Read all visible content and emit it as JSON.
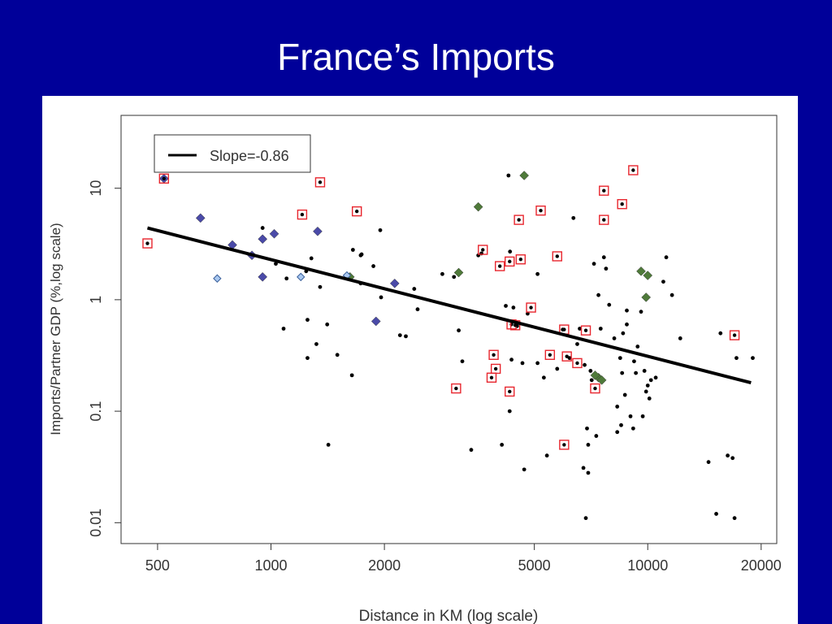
{
  "slide": {
    "title": "France’s Imports"
  },
  "colors": {
    "background": "#000099",
    "panel": "#ffffff",
    "regression_line": "#000000",
    "black_points": "#000000",
    "green_points": "#4f7a3a",
    "purple_points": "#4a4aa8",
    "light_blue_points": "#a9c8f0",
    "box_highlight": "#e8262e"
  },
  "chart_data": {
    "type": "scatter",
    "title": "",
    "xlabel": "Distance in KM (log scale)",
    "ylabel": "Imports/Partner GDP (%,log scale)",
    "xscale": "log",
    "yscale": "log",
    "xlim": [
      400,
      22000
    ],
    "ylim": [
      0.0065,
      45
    ],
    "x_ticks": [
      500,
      1000,
      2000,
      5000,
      10000,
      20000
    ],
    "x_tick_labels": [
      "500",
      "1000",
      "2000",
      "5000",
      "10000",
      "20000"
    ],
    "y_ticks": [
      0.01,
      0.1,
      1,
      10
    ],
    "y_tick_labels": [
      "0.01",
      "0.1",
      "1",
      "10"
    ],
    "grid": false,
    "legend": {
      "position": "top-left",
      "entries": [
        {
          "label": "Slope=-0.86"
        }
      ]
    },
    "regression": {
      "slope": -0.86,
      "x": [
        470,
        18800
      ],
      "y": [
        4.4,
        0.18
      ]
    },
    "series": [
      {
        "name": "",
        "marker": "dot",
        "color": "#000000",
        "x": [
          950,
          1030,
          1280,
          1250,
          1080,
          1240,
          1410,
          1350,
          1640,
          1740,
          1870,
          1950,
          1730,
          1960,
          2400,
          2280,
          2450,
          2850,
          3150,
          3220,
          3060,
          3550,
          4200,
          4300,
          4700,
          4400,
          4800,
          5100,
          5300,
          5100,
          5400,
          5750,
          4650,
          5950,
          6200,
          6350,
          6500,
          6600,
          6800,
          6950,
          7050,
          7200,
          7400,
          7500,
          7650,
          7750,
          7900,
          8150,
          8300,
          8450,
          8550,
          8700,
          8800,
          9000,
          9150,
          9300,
          9400,
          9600,
          9800,
          10000,
          10200,
          10500,
          11000,
          11200,
          11600,
          12200,
          14500,
          15200,
          16300,
          17000,
          19000,
          9900,
          10100,
          9700,
          6850,
          6750,
          6950,
          7100,
          7300,
          8600,
          8800,
          9200,
          3400,
          4100,
          4350,
          4500,
          2200,
          1420,
          1650,
          1500,
          1100,
          1730,
          1250,
          1320,
          6900,
          15600,
          16800,
          17200,
          4270,
          4310,
          3620,
          8500,
          8300
        ],
        "y": [
          4.4,
          2.1,
          2.35,
          0.66,
          0.55,
          1.8,
          0.6,
          1.3,
          0.21,
          2.55,
          2.0,
          4.2,
          2.5,
          1.05,
          1.25,
          0.47,
          0.82,
          1.7,
          0.53,
          0.28,
          1.6,
          2.5,
          0.88,
          0.1,
          0.03,
          0.85,
          0.75,
          0.27,
          0.2,
          1.7,
          0.04,
          0.24,
          0.27,
          0.54,
          0.3,
          5.4,
          0.4,
          0.55,
          0.26,
          0.05,
          0.23,
          2.1,
          1.1,
          0.55,
          2.4,
          1.9,
          0.9,
          0.45,
          0.11,
          0.3,
          0.22,
          0.14,
          0.8,
          0.09,
          0.07,
          0.22,
          0.38,
          0.78,
          0.23,
          0.17,
          0.19,
          0.2,
          1.45,
          2.4,
          1.1,
          0.45,
          0.035,
          0.012,
          0.04,
          0.011,
          0.3,
          0.15,
          0.13,
          0.09,
          0.011,
          0.031,
          0.028,
          0.19,
          0.06,
          0.5,
          0.6,
          0.28,
          0.045,
          0.05,
          0.29,
          0.58,
          0.48,
          0.05,
          2.8,
          0.32,
          1.55,
          1.4,
          0.3,
          0.4,
          0.07,
          0.5,
          0.038,
          0.3,
          13.0,
          2.7,
          2.6,
          0.075,
          0.065
        ]
      },
      {
        "name": "",
        "marker": "filled-diamond",
        "color": "#4f7a3a",
        "x": [
          4700,
          3550,
          3150,
          9600,
          10000,
          9900,
          7400,
          7250,
          7550,
          1620
        ],
        "y": [
          13.0,
          6.8,
          1.75,
          1.8,
          1.65,
          1.05,
          0.2,
          0.21,
          0.19,
          1.6
        ]
      },
      {
        "name": "",
        "marker": "filled-diamond",
        "color": "#4a4aa8",
        "x": [
          520,
          650,
          790,
          890,
          950,
          1020,
          950,
          1330,
          2130,
          1900
        ],
        "y": [
          12.2,
          5.4,
          3.1,
          2.5,
          3.5,
          3.9,
          1.6,
          4.1,
          1.4,
          0.64
        ]
      },
      {
        "name": "",
        "marker": "open-diamond",
        "color": "#a9c8f0",
        "x": [
          720,
          1200,
          1590
        ],
        "y": [
          1.55,
          1.6,
          1.65
        ]
      },
      {
        "name": "",
        "marker": "boxed-point",
        "color": "#e8262e",
        "x": [
          470,
          520,
          1210,
          1350,
          1690,
          3100,
          3650,
          3900,
          4050,
          4300,
          4550,
          4350,
          4600,
          4900,
          5200,
          5500,
          5750,
          6000,
          6100,
          6500,
          6850,
          7250,
          7650,
          7650,
          8550,
          9150,
          3950,
          3850,
          4300,
          4450,
          17000,
          6000
        ],
        "y": [
          3.2,
          12.2,
          5.8,
          11.3,
          6.2,
          0.16,
          2.8,
          0.32,
          2.0,
          2.2,
          5.2,
          0.6,
          2.3,
          0.85,
          6.3,
          0.32,
          2.45,
          0.05,
          0.31,
          0.27,
          0.53,
          0.16,
          9.5,
          5.2,
          7.2,
          14.5,
          0.24,
          0.2,
          0.15,
          0.59,
          0.48,
          0.54
        ]
      }
    ]
  }
}
